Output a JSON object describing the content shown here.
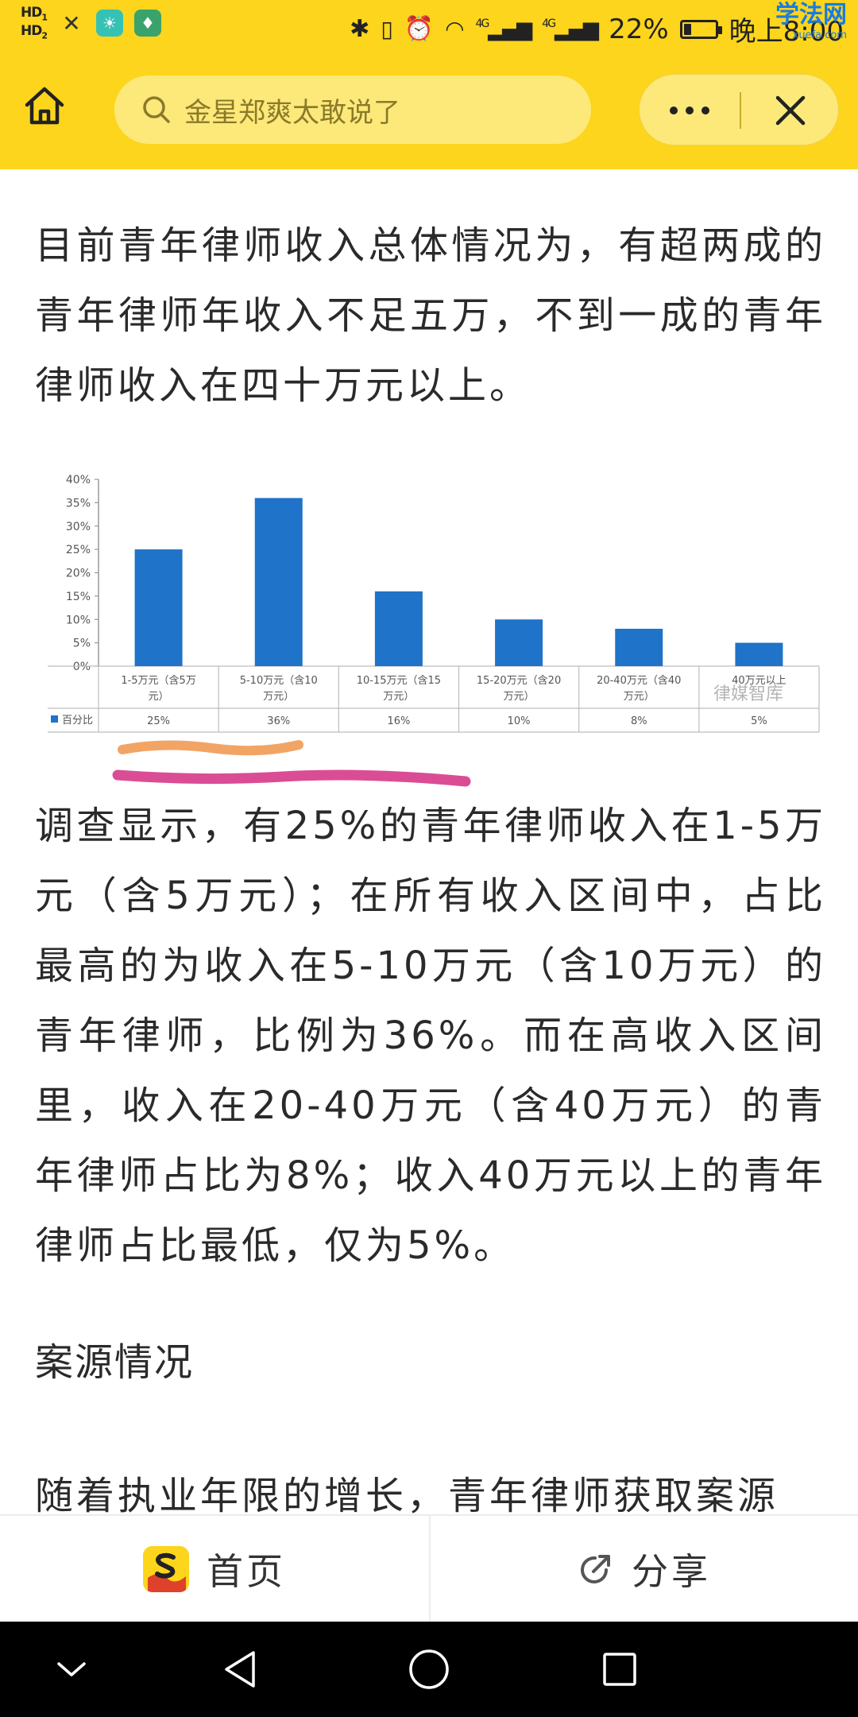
{
  "status_bar": {
    "hd1": "HD",
    "hd1_sub": "1",
    "hd2": "HD",
    "hd2_sub": "2",
    "signal1": "4G",
    "signal2": "4G",
    "battery": "22%",
    "battery_level": 0.22,
    "time": "晚上8:00",
    "watermark_main": "学法网",
    "watermark_sub": "xuefa.com"
  },
  "top_nav": {
    "search_placeholder": "金星郑爽太敢说了"
  },
  "article": {
    "paragraph1": "目前青年律师收入总体情况为，有超两成的青年律师年收入不足五万，不到一成的青年律师收入在四十万元以上。",
    "paragraph2": "调查显示，有25%的青年律师收入在1-5万元（含5万元）；在所有收入区间中，占比最高的为收入在5-10万元（含10万元）的青年律师，比例为36%。而在高收入区间里，收入在20-40万元（含40万元）的青年律师占比为8%；收入40万元以上的青年律师占比最低，仅为5%。",
    "heading": "案源情况",
    "paragraph3": "随着执业年限的增长，青年律师获取案源"
  },
  "chart_data": {
    "type": "bar",
    "categories": [
      "1-5万元（含5万元）",
      "5-10万元（含10万元）",
      "10-15万元（含15万元）",
      "15-20万元（含20万元）",
      "20-40万元（含40万元）",
      "40万元以上"
    ],
    "series": [
      {
        "name": "百分比",
        "values": [
          25,
          36,
          16,
          10,
          8,
          5
        ]
      }
    ],
    "value_labels": [
      "25%",
      "36%",
      "16%",
      "10%",
      "8%",
      "5%"
    ],
    "y_ticks": [
      "0%",
      "5%",
      "10%",
      "15%",
      "20%",
      "25%",
      "30%",
      "35%",
      "40%"
    ],
    "ylim": [
      0,
      40
    ],
    "bar_color": "#1f73c8",
    "legend_placement": "data-table-left",
    "watermark": "律媒智库",
    "highlight_colors": [
      "#f0944a",
      "#d63a8a"
    ]
  },
  "tab_bar": {
    "home_label": "首页",
    "share_label": "分享"
  },
  "colors": {
    "brand_yellow": "#fcd51c",
    "search_bg": "#fde97a"
  }
}
